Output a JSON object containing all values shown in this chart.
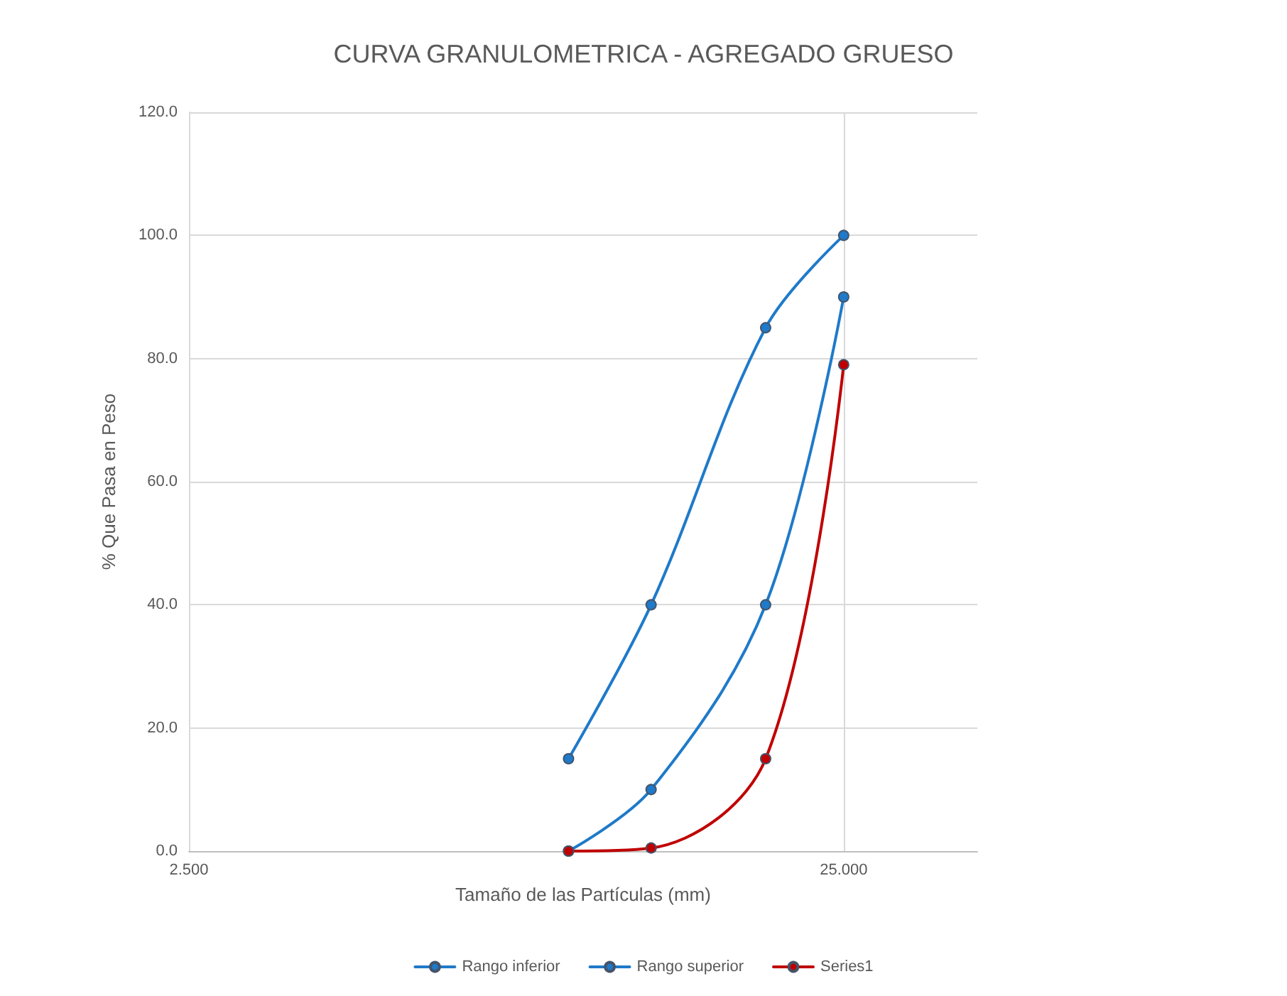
{
  "chart_data": {
    "type": "line",
    "title": "CURVA GRANULOMETRICA - AGREGADO GRUESO",
    "xlabel": "Tamaño de las Partículas (mm)",
    "ylabel": "% Que Pasa en Peso",
    "x": [
      9.5,
      12.7,
      19,
      25
    ],
    "series": [
      {
        "name": "Rango inferior",
        "color": "#1f7ac9",
        "values": [
          0,
          10,
          40,
          90
        ]
      },
      {
        "name": "Rango superior",
        "color": "#1f7ac9",
        "values": [
          15,
          40,
          85,
          100
        ]
      },
      {
        "name": "Series1",
        "color": "#c00000",
        "values": [
          0,
          0.5,
          15,
          79
        ]
      }
    ],
    "log": "x",
    "xlim": [
      2.5,
      40
    ],
    "xticks": [
      {
        "value": 2.5,
        "label": "2.500"
      },
      {
        "value": 25,
        "label": "25.000"
      }
    ],
    "ylim": [
      0,
      120
    ],
    "yticks": [
      {
        "value": 0,
        "label": "0.0"
      },
      {
        "value": 20,
        "label": "20.0"
      },
      {
        "value": 40,
        "label": "40.0"
      },
      {
        "value": 60,
        "label": "60.0"
      },
      {
        "value": 80,
        "label": "80.0"
      },
      {
        "value": 100,
        "label": "100.0"
      },
      {
        "value": 120,
        "label": "120.0"
      }
    ],
    "grid": true,
    "legend": "bottom",
    "marker": "circle",
    "line_style": "solid"
  }
}
